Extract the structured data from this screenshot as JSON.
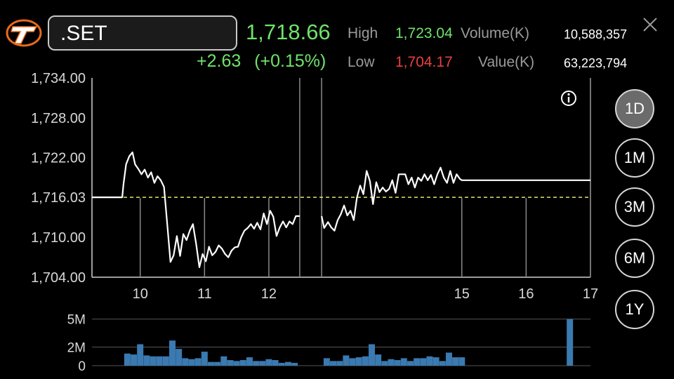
{
  "header": {
    "symbol": ".SET",
    "last_price": "1,718.66",
    "change": "+2.63",
    "change_pct": "(+0.15%)",
    "high_label": "High",
    "high_value": "1,723.04",
    "low_label": "Low",
    "low_value": "1,704.17",
    "volume_label": "Volume(K)",
    "volume_value": "10,588,357",
    "value_label": "Value(K)",
    "value_value": "63,223,794"
  },
  "periods": [
    "1D",
    "1M",
    "3M",
    "6M",
    "1Y"
  ],
  "active_period": "1D",
  "colors": {
    "up": "#6fe36a",
    "down": "#e84040",
    "reference": "#e8e36a",
    "volume_bar": "#3a7ab0"
  },
  "icons": {
    "info": "info-icon",
    "close": "close-icon",
    "logo": "settrade-logo-icon"
  },
  "chart_data": {
    "type": "line",
    "title": "",
    "y_ticks": [
      "1,734.00",
      "1,728.00",
      "1,722.00",
      "1,716.03",
      "1,710.00",
      "1,704.00"
    ],
    "ylim": [
      1704.0,
      1734.0
    ],
    "reference_value": 1716.03,
    "reference_label": "1,716.03",
    "x_ticks": [
      "10",
      "11",
      "12",
      "15",
      "16",
      "17"
    ],
    "x_tick_values": [
      10,
      11,
      12,
      15,
      16,
      17
    ],
    "x_range": [
      9.25,
      17.0
    ],
    "session_gaps": [
      [
        12.48,
        12.82
      ]
    ],
    "grid_x": [
      10,
      11,
      12,
      15,
      16
    ],
    "series": [
      {
        "values_x": [
          9.25,
          9.72,
          9.74,
          9.78,
          9.83,
          9.88,
          9.92,
          9.97,
          10.02,
          10.07,
          10.12,
          10.17,
          10.22,
          10.27,
          10.32,
          10.37,
          10.42,
          10.47,
          10.52,
          10.57,
          10.62,
          10.67,
          10.72,
          10.77,
          10.82,
          10.87,
          10.92,
          10.97,
          11.02,
          11.07,
          11.12,
          11.17,
          11.22,
          11.27,
          11.32,
          11.37,
          11.42,
          11.47,
          11.52,
          11.57,
          11.62,
          11.67,
          11.72,
          11.77,
          11.82,
          11.87,
          11.92,
          11.97,
          12.02,
          12.07,
          12.12,
          12.17,
          12.22,
          12.27,
          12.32,
          12.37,
          12.42,
          12.48
        ],
        "values_y": [
          1716.03,
          1716.03,
          1718.0,
          1721.0,
          1722.2,
          1722.8,
          1721.0,
          1720.3,
          1719.5,
          1720.2,
          1719.0,
          1719.8,
          1718.2,
          1719.2,
          1718.6,
          1717.6,
          1712.0,
          1706.3,
          1707.3,
          1710.2,
          1707.2,
          1710.5,
          1709.6,
          1711.0,
          1712.0,
          1709.0,
          1705.5,
          1707.5,
          1706.4,
          1708.6,
          1707.3,
          1707.8,
          1708.8,
          1708.3,
          1707.5,
          1707.0,
          1708.0,
          1708.5,
          1708.6,
          1710.0,
          1711.0,
          1711.4,
          1712.0,
          1711.3,
          1712.2,
          1711.2,
          1713.6,
          1712.0,
          1714.0,
          1713.1,
          1710.2,
          1711.5,
          1712.4,
          1711.5,
          1712.4,
          1712.0,
          1713.2,
          1713.2
        ]
      },
      {
        "values_x": [
          12.82,
          12.86,
          12.92,
          12.97,
          13.02,
          13.07,
          13.12,
          13.17,
          13.22,
          13.27,
          13.32,
          13.37,
          13.42,
          13.47,
          13.52,
          13.57,
          13.62,
          13.67,
          13.72,
          13.77,
          13.82,
          13.87,
          13.92,
          13.97,
          14.02,
          14.07,
          14.12,
          14.17,
          14.22,
          14.27,
          14.32,
          14.37,
          14.42,
          14.47,
          14.52,
          14.57,
          14.62,
          14.67,
          14.72,
          14.77,
          14.82,
          14.87,
          14.92,
          14.97,
          15.0,
          15.12,
          15.2,
          15.4,
          15.6,
          15.8,
          16.0,
          16.2,
          16.4,
          16.6,
          16.8,
          17.0
        ],
        "values_y": [
          1713.2,
          1711.4,
          1712.3,
          1711.5,
          1711.0,
          1712.6,
          1713.5,
          1714.8,
          1713.3,
          1714.0,
          1712.6,
          1716.0,
          1717.8,
          1716.5,
          1720.0,
          1718.5,
          1715.0,
          1718.3,
          1716.8,
          1717.5,
          1716.9,
          1717.3,
          1718.6,
          1716.7,
          1719.5,
          1719.5,
          1719.5,
          1718.0,
          1719.0,
          1717.5,
          1719.0,
          1718.5,
          1719.5,
          1718.6,
          1719.4,
          1718.0,
          1719.5,
          1720.5,
          1719.0,
          1718.2,
          1720.0,
          1718.2,
          1719.5,
          1718.8,
          1718.6,
          1718.6,
          1718.6,
          1718.6,
          1718.6,
          1718.6,
          1718.6,
          1718.6,
          1718.6,
          1718.6,
          1718.6,
          1718.6
        ]
      }
    ],
    "volume": {
      "y_ticks": [
        "5M",
        "2M",
        "0"
      ],
      "ylim": [
        0,
        5.2
      ],
      "bars_x": [
        9.8,
        9.9,
        10.0,
        10.1,
        10.2,
        10.3,
        10.4,
        10.5,
        10.6,
        10.7,
        10.8,
        10.9,
        11.0,
        11.1,
        11.2,
        11.3,
        11.4,
        11.5,
        11.6,
        11.7,
        11.8,
        11.9,
        12.0,
        12.1,
        12.2,
        12.3,
        12.4,
        12.9,
        13.0,
        13.1,
        13.2,
        13.3,
        13.4,
        13.5,
        13.6,
        13.7,
        13.8,
        13.9,
        14.0,
        14.1,
        14.2,
        14.3,
        14.4,
        14.5,
        14.6,
        14.7,
        14.8,
        14.9,
        15.0
      ],
      "bars_v": [
        1.3,
        1.2,
        2.3,
        1.1,
        1.0,
        1.0,
        1.0,
        2.7,
        1.8,
        0.8,
        0.7,
        0.8,
        1.5,
        0.4,
        0.4,
        1.0,
        0.6,
        0.5,
        0.6,
        0.9,
        0.5,
        0.5,
        0.7,
        0.6,
        0.3,
        0.4,
        0.3,
        0.8,
        0.5,
        0.5,
        1.1,
        0.8,
        0.9,
        1.0,
        2.3,
        1.2,
        0.5,
        0.7,
        0.6,
        0.8,
        0.5,
        0.8,
        0.8,
        1.0,
        0.9,
        0.5,
        1.4,
        0.9,
        0.9
      ]
    }
  }
}
